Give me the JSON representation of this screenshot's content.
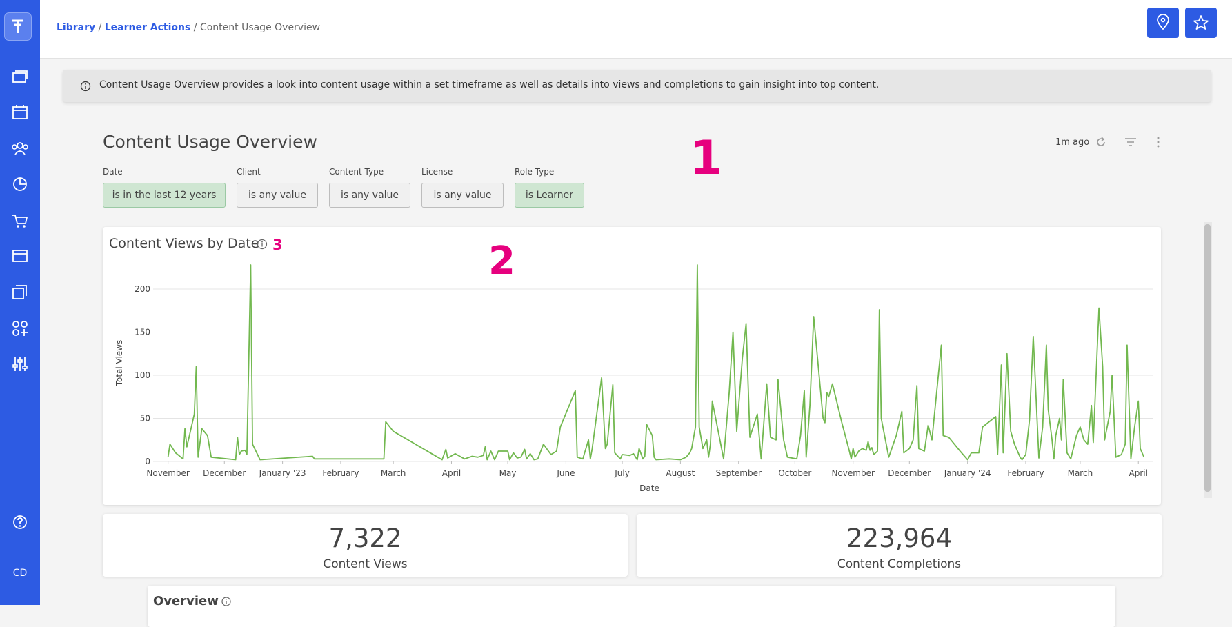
{
  "breadcrumb": {
    "items": [
      "Library",
      "Learner Actions",
      "Content Usage Overview"
    ],
    "separator": "/"
  },
  "info_banner": "Content Usage Overview provides a look into content usage within a set timeframe as well as details into views and completions to gain insight into top content.",
  "dashboard": {
    "title": "Content Usage Overview",
    "updated": "1m ago",
    "filters": [
      {
        "label": "Date",
        "value": "is in the last 12 years"
      },
      {
        "label": "Client",
        "value": "is any value"
      },
      {
        "label": "Content Type",
        "value": "is any value"
      },
      {
        "label": "License",
        "value": "is any value"
      },
      {
        "label": "Role Type",
        "value": "is Learner"
      }
    ]
  },
  "annotations": [
    "1",
    "2",
    "3"
  ],
  "chart_data": {
    "type": "line",
    "title": "Content Views by Date",
    "x_label": "Date",
    "y_label": "Total Views",
    "color": "#72b84f",
    "grid": true,
    "xlim": [
      -12,
      525
    ],
    "xticks": [
      {
        "value": 0,
        "label": "November"
      },
      {
        "value": 30,
        "label": "December"
      },
      {
        "value": 61,
        "label": "January '23"
      },
      {
        "value": 92,
        "label": "February"
      },
      {
        "value": 120,
        "label": "March"
      },
      {
        "value": 151,
        "label": "April"
      },
      {
        "value": 181,
        "label": "May"
      },
      {
        "value": 212,
        "label": "June"
      },
      {
        "value": 242,
        "label": "July"
      },
      {
        "value": 273,
        "label": "August"
      },
      {
        "value": 304,
        "label": "September"
      },
      {
        "value": 334,
        "label": "October"
      },
      {
        "value": 365,
        "label": "November"
      },
      {
        "value": 395,
        "label": "December"
      },
      {
        "value": 426,
        "label": "January '24"
      },
      {
        "value": 457,
        "label": "February"
      },
      {
        "value": 486,
        "label": "March"
      },
      {
        "value": 517,
        "label": "April"
      }
    ],
    "ylim": [
      0,
      220
    ],
    "yticks": [
      0,
      50,
      100,
      150,
      200
    ],
    "x": [
      0,
      1,
      4,
      8,
      9,
      10,
      14,
      15,
      16,
      18,
      21,
      23,
      36,
      37,
      38,
      39,
      41,
      42,
      44,
      45,
      49,
      77,
      78,
      115,
      116,
      120,
      146,
      148,
      149,
      153,
      158,
      162,
      165,
      168,
      169,
      170,
      172,
      174,
      176,
      181,
      182,
      184,
      186,
      188,
      190,
      191,
      193,
      195,
      197,
      200,
      204,
      207,
      209,
      217,
      218,
      221,
      224,
      225,
      226,
      231,
      233,
      234,
      237,
      238,
      241,
      242,
      246,
      248,
      250,
      251,
      253,
      254,
      255,
      258,
      259,
      260,
      267,
      273,
      276,
      278,
      279,
      281,
      282,
      283,
      285,
      287,
      288,
      289,
      290,
      296,
      299,
      301,
      303,
      306,
      308,
      310,
      314,
      316,
      319,
      321,
      324,
      325,
      328,
      330,
      335,
      337,
      339,
      340,
      342,
      344,
      349,
      350,
      351,
      352,
      354,
      359,
      363,
      364,
      365,
      366,
      368,
      370,
      372,
      373,
      374,
      375,
      376,
      378,
      379,
      380,
      384,
      388,
      391,
      392,
      395,
      397,
      399,
      400,
      403,
      405,
      407,
      412,
      413,
      416,
      422,
      426,
      428,
      432,
      434,
      441,
      442,
      444,
      445,
      447,
      449,
      451,
      454,
      455,
      457,
      459,
      461,
      464,
      466,
      468,
      469,
      471,
      472,
      473,
      475,
      476,
      477,
      479,
      481,
      484,
      486,
      488,
      490,
      492,
      493,
      496,
      498,
      499,
      502,
      503,
      505,
      508,
      510,
      511,
      513,
      515,
      517,
      518,
      520
    ],
    "values": [
      5,
      20,
      10,
      3,
      38,
      17,
      55,
      110,
      5,
      38,
      30,
      5,
      2,
      28,
      8,
      12,
      13,
      8,
      228,
      20,
      2,
      6,
      3,
      3,
      46,
      35,
      2,
      14,
      4,
      9,
      3,
      6,
      5,
      7,
      17,
      2,
      12,
      2,
      12,
      12,
      2,
      10,
      4,
      5,
      14,
      3,
      9,
      2,
      3,
      20,
      8,
      12,
      40,
      82,
      5,
      3,
      25,
      3,
      15,
      97,
      15,
      20,
      89,
      10,
      3,
      8,
      7,
      9,
      2,
      15,
      3,
      6,
      43,
      30,
      5,
      2,
      3,
      2,
      5,
      10,
      15,
      40,
      228,
      40,
      15,
      25,
      5,
      20,
      70,
      3,
      80,
      150,
      35,
      120,
      160,
      28,
      55,
      3,
      90,
      28,
      25,
      95,
      25,
      5,
      3,
      30,
      82,
      5,
      65,
      168,
      50,
      45,
      80,
      75,
      90,
      45,
      12,
      3,
      15,
      5,
      12,
      15,
      13,
      23,
      13,
      16,
      8,
      12,
      176,
      50,
      5,
      30,
      58,
      10,
      15,
      25,
      88,
      15,
      12,
      42,
      25,
      135,
      30,
      28,
      12,
      2,
      10,
      10,
      40,
      52,
      8,
      112,
      10,
      125,
      35,
      20,
      5,
      2,
      8,
      48,
      145,
      4,
      40,
      135,
      60,
      25,
      3,
      30,
      50,
      25,
      95,
      10,
      3,
      30,
      40,
      25,
      20,
      65,
      22,
      178,
      110,
      25,
      58,
      100,
      5,
      8,
      20,
      135,
      3,
      40,
      70,
      15,
      5
    ]
  },
  "summary": [
    {
      "value": "7,322",
      "label": "Content Views"
    },
    {
      "value": "223,964",
      "label": "Content Completions"
    }
  ],
  "overview": {
    "title": "Overview"
  },
  "user": {
    "initials": "CD"
  }
}
